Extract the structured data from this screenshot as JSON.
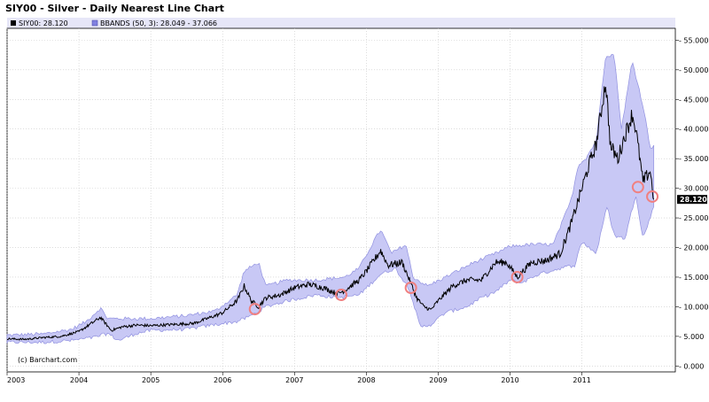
{
  "chart_data": {
    "type": "line",
    "title": "SIY00 - Silver - Daily Nearest Line Chart",
    "legend": [
      {
        "name": "SIY00: 28.120",
        "color": "#000000"
      },
      {
        "name": "BBANDS (50, 3): 28.049 - 37.066",
        "color": "#8080e0"
      }
    ],
    "credit": "(c) Barchart.com",
    "last_value_label": "28.120",
    "x_axis": {
      "min": 2003.0,
      "max": 2012.3,
      "ticks": [
        "2003",
        "2004",
        "2005",
        "2006",
        "2007",
        "2008",
        "2009",
        "2010",
        "2011"
      ]
    },
    "y_axis": {
      "min": -1.0,
      "max": 57.0,
      "position": "right",
      "ticks": [
        "0.000",
        "5.000",
        "10.000",
        "15.000",
        "20.000",
        "25.000",
        "30.000",
        "35.000",
        "40.000",
        "45.000",
        "50.000",
        "55.000"
      ]
    },
    "grid": true,
    "price_series": {
      "name": "SIY00",
      "x": [
        2003.0,
        2003.25,
        2003.5,
        2003.75,
        2004.0,
        2004.15,
        2004.3,
        2004.45,
        2004.6,
        2004.8,
        2005.0,
        2005.3,
        2005.6,
        2005.9,
        2006.0,
        2006.2,
        2006.3,
        2006.4,
        2006.5,
        2006.6,
        2006.8,
        2007.0,
        2007.2,
        2007.4,
        2007.6,
        2007.7,
        2007.9,
        2008.0,
        2008.2,
        2008.3,
        2008.5,
        2008.6,
        2008.7,
        2008.8,
        2008.9,
        2009.0,
        2009.2,
        2009.4,
        2009.6,
        2009.8,
        2009.95,
        2010.1,
        2010.3,
        2010.5,
        2010.7,
        2010.85,
        2010.95,
        2011.0,
        2011.1,
        2011.2,
        2011.33,
        2011.4,
        2011.5,
        2011.6,
        2011.7,
        2011.75,
        2011.85,
        2011.95,
        2012.0
      ],
      "y": [
        4.6,
        4.5,
        4.8,
        5.0,
        5.8,
        7.0,
        8.2,
        6.0,
        6.6,
        6.9,
        6.8,
        7.0,
        7.2,
        8.5,
        9.0,
        11.0,
        13.5,
        11.0,
        10.0,
        11.5,
        12.0,
        13.2,
        13.8,
        13.2,
        12.2,
        12.8,
        14.5,
        16.0,
        19.5,
        17.0,
        17.5,
        14.5,
        11.5,
        10.0,
        9.5,
        11.0,
        13.5,
        14.5,
        14.5,
        17.5,
        17.5,
        15.0,
        17.5,
        17.8,
        19.0,
        24.0,
        28.0,
        30.0,
        34.0,
        37.5,
        48.0,
        37.0,
        35.0,
        39.0,
        42.5,
        40.0,
        31.0,
        33.0,
        28.12
      ]
    },
    "bband_upper": {
      "x": [
        2003.0,
        2003.5,
        2003.9,
        2004.1,
        2004.3,
        2004.4,
        2004.6,
        2005.0,
        2005.5,
        2005.9,
        2006.2,
        2006.3,
        2006.5,
        2006.6,
        2006.9,
        2007.3,
        2007.7,
        2007.9,
        2008.1,
        2008.2,
        2008.35,
        2008.55,
        2008.65,
        2008.85,
        2009.1,
        2009.5,
        2009.8,
        2010.0,
        2010.3,
        2010.6,
        2010.85,
        2010.95,
        2011.05,
        2011.2,
        2011.33,
        2011.45,
        2011.55,
        2011.7,
        2011.85,
        2011.95,
        2012.0
      ],
      "y": [
        5.2,
        5.4,
        6.2,
        7.5,
        9.8,
        8.0,
        8.0,
        8.0,
        8.5,
        9.3,
        12.0,
        16.0,
        17.5,
        13.5,
        14.5,
        14.5,
        15.0,
        16.5,
        21.0,
        23.0,
        19.0,
        20.5,
        15.0,
        13.5,
        15.0,
        17.5,
        19.0,
        20.2,
        20.5,
        20.5,
        28.0,
        34.0,
        35.0,
        38.0,
        52.5,
        52.5,
        40.0,
        51.5,
        44.0,
        37.0,
        37.0
      ]
    },
    "bband_lower": {
      "x": [
        2003.0,
        2003.5,
        2003.9,
        2004.2,
        2004.4,
        2004.55,
        2004.8,
        2005.0,
        2005.5,
        2005.9,
        2006.2,
        2006.4,
        2006.6,
        2006.9,
        2007.3,
        2007.6,
        2007.9,
        2008.2,
        2008.4,
        2008.6,
        2008.75,
        2008.9,
        2009.1,
        2009.4,
        2009.6,
        2009.8,
        2010.0,
        2010.15,
        2010.4,
        2010.7,
        2010.9,
        2011.0,
        2011.2,
        2011.35,
        2011.45,
        2011.6,
        2011.75,
        2011.85,
        2011.95,
        2012.0
      ],
      "y": [
        4.0,
        4.0,
        4.3,
        4.8,
        5.5,
        4.3,
        5.5,
        6.0,
        6.2,
        7.0,
        7.5,
        8.5,
        10.0,
        11.0,
        12.0,
        11.5,
        12.0,
        15.5,
        16.5,
        13.0,
        6.5,
        7.0,
        9.0,
        10.0,
        11.5,
        12.5,
        14.5,
        14.0,
        15.5,
        16.5,
        17.0,
        21.0,
        19.0,
        27.0,
        22.0,
        21.5,
        29.0,
        21.5,
        25.0,
        27.0
      ]
    },
    "markers": [
      {
        "x": 2006.45,
        "y": 9.6
      },
      {
        "x": 2007.65,
        "y": 12.0
      },
      {
        "x": 2008.62,
        "y": 13.2
      },
      {
        "x": 2010.1,
        "y": 15.0
      },
      {
        "x": 2011.78,
        "y": 30.2
      },
      {
        "x": 2011.98,
        "y": 28.6
      }
    ],
    "colors": {
      "band_fill": "#c8c8f5",
      "band_stroke": "#9090e0",
      "line": "#000000",
      "marker": "#f08080",
      "last_label_bg": "#000000"
    }
  }
}
